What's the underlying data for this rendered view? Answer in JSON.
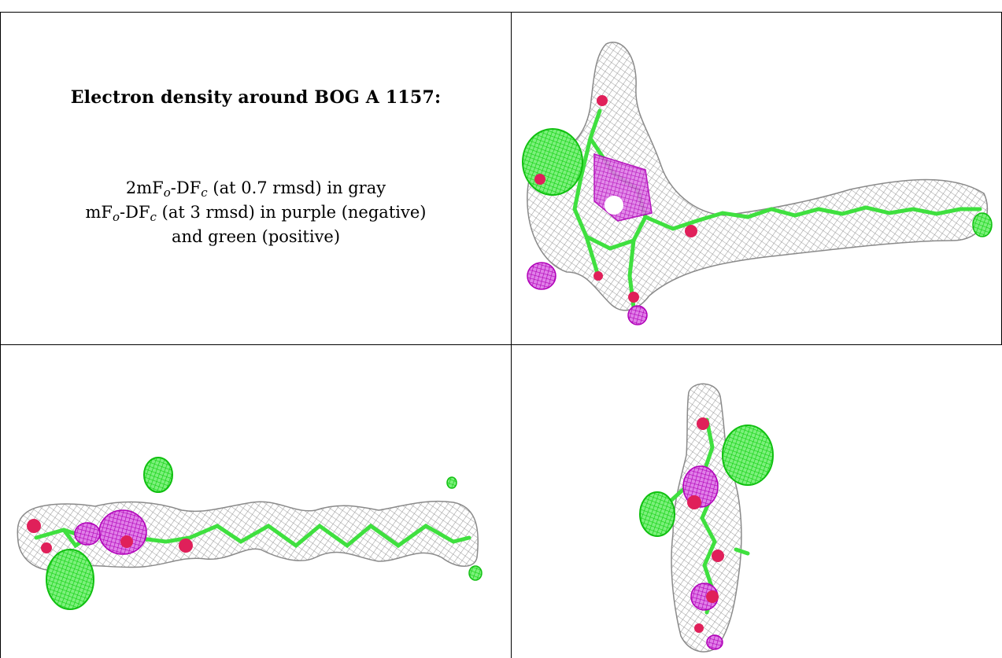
{
  "legend": {
    "title": "Electron density around BOG A 1157:",
    "line1": {
      "prefix": "2mF",
      "sub1": "o",
      "mid": "-DF",
      "sub2": "c",
      "suffix": " (at 0.7 rmsd) in gray"
    },
    "line2": {
      "prefix": "mF",
      "sub1": "o",
      "mid": "-DF",
      "sub2": "c",
      "suffix": " (at 3 rmsd) in purple (negative)"
    },
    "line3": "and green (positive)"
  },
  "colors": {
    "mesh_gray": "#9a9a9a",
    "model_green": "#3fe03f",
    "density_positive": "#16e016",
    "density_negative": "#c000c0",
    "oxygen_red": "#e0205a"
  },
  "panels": [
    {
      "id": "view-1",
      "view": "oblique"
    },
    {
      "id": "view-2",
      "view": "side"
    },
    {
      "id": "view-3",
      "view": "end-on"
    }
  ]
}
